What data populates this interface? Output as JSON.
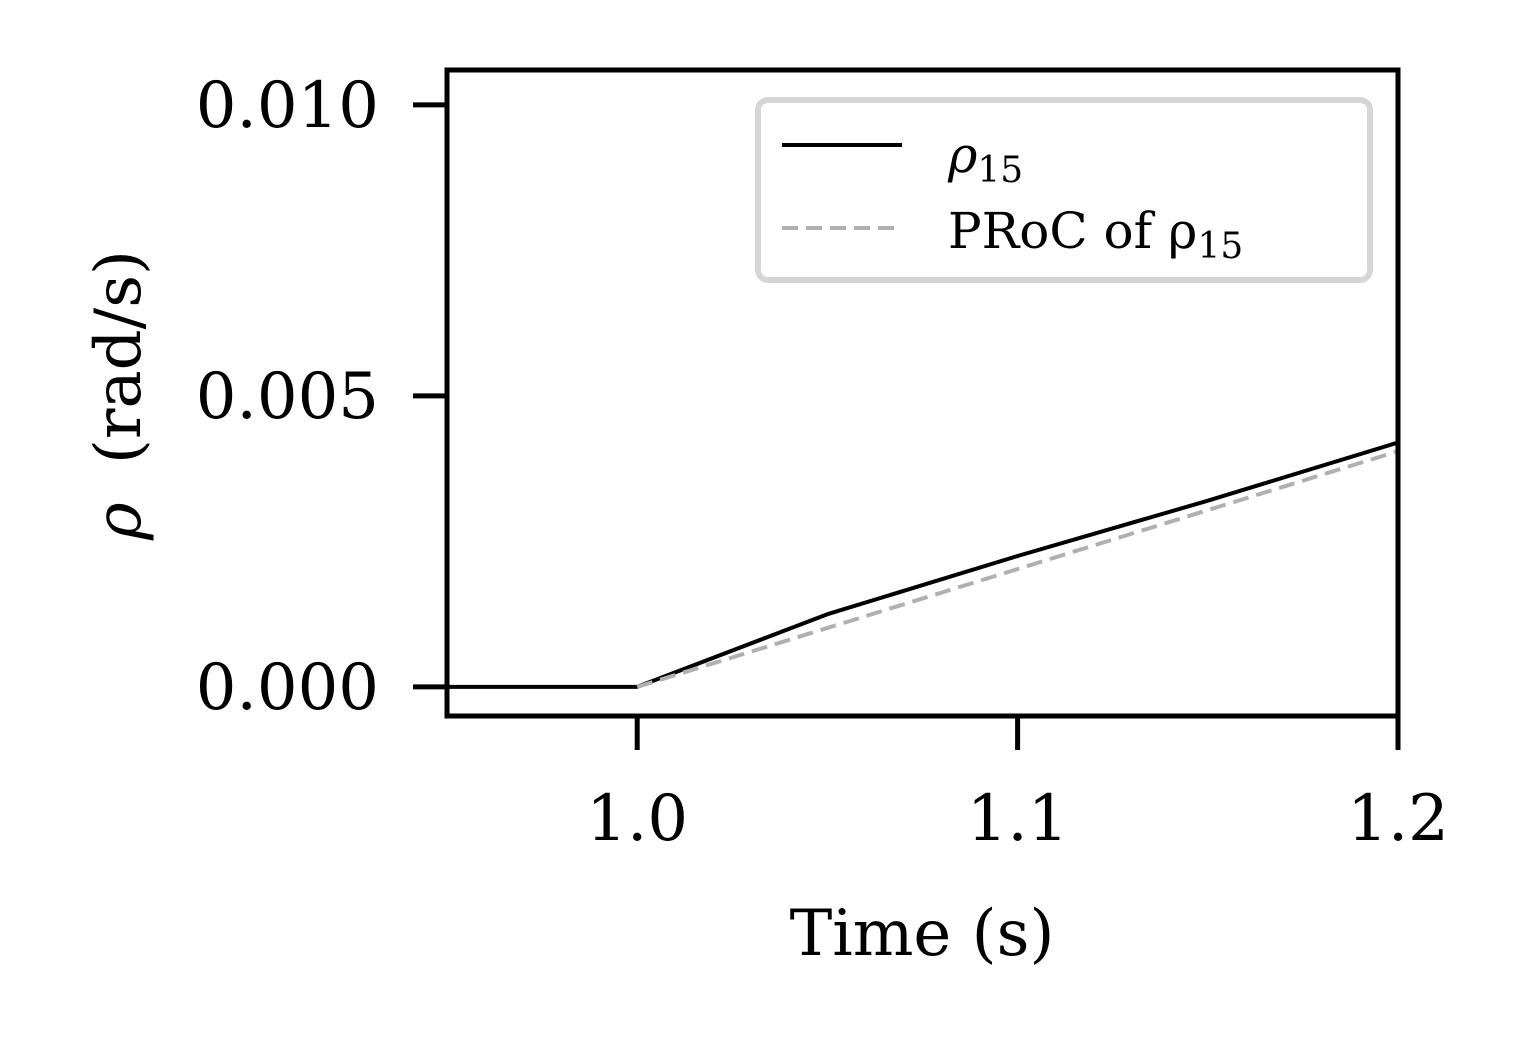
{
  "chart_data": {
    "type": "line",
    "xlabel": "Time (s)",
    "ylabel_symbol": "ρ",
    "ylabel_unit": "(rad/s)",
    "xlim": [
      0.95,
      1.2
    ],
    "ylim": [
      -0.0005,
      0.0106
    ],
    "xticks": [
      1.0,
      1.1,
      1.2
    ],
    "xtick_labels": [
      "1.0",
      "1.1",
      "1.2"
    ],
    "yticks": [
      0.0,
      0.005,
      0.01
    ],
    "ytick_labels": [
      "0.000",
      "0.005",
      "0.010"
    ],
    "grid": false,
    "legend_position": "top-right",
    "series": [
      {
        "name": "ρ15",
        "label_base": "ρ",
        "label_sub": "15",
        "style": "solid",
        "color": "#000000",
        "x": [
          0.95,
          1.0,
          1.05,
          1.1,
          1.15,
          1.2
        ],
        "y": [
          0.0,
          0.0,
          0.00125,
          0.00225,
          0.0032,
          0.0042
        ]
      },
      {
        "name": "PRoC of ρ15",
        "label_base": "PRoC of ρ",
        "label_sub": "15",
        "style": "dashed",
        "color": "#b0b0b0",
        "x": [
          1.0,
          1.2
        ],
        "y": [
          0.0,
          0.00405
        ]
      }
    ]
  }
}
